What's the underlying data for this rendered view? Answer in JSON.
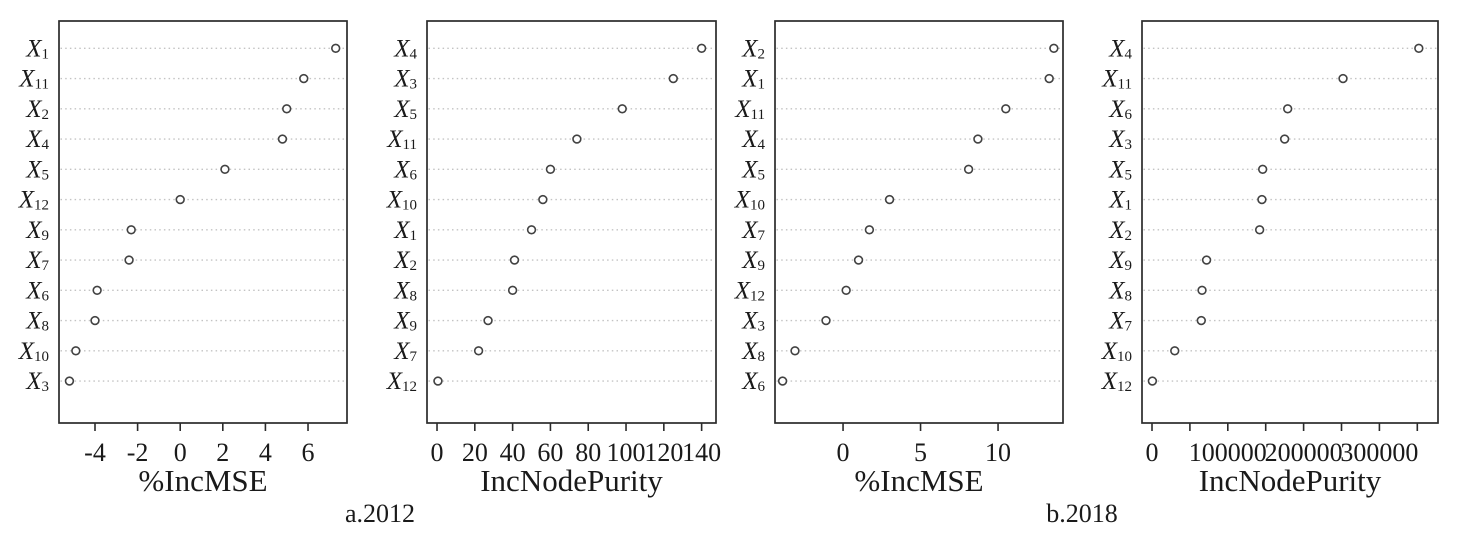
{
  "figure": {
    "description": "Random forest variable importance dot plots",
    "captions": [
      {
        "label": "a.2012"
      },
      {
        "label": "b.2018"
      }
    ]
  },
  "style": {
    "point_stroke": "#424242",
    "point_fill": "#ffffff",
    "grid_color": "#c3c3c3",
    "border_color": "#2b2b2b",
    "text_color": "#1a1a1a"
  },
  "chart_data": [
    {
      "type": "scatter",
      "panel": "2012-pct-inc-mse",
      "xlabel": "%IncMSE",
      "categories": [
        "X1",
        "X11",
        "X2",
        "X4",
        "X5",
        "X12",
        "X9",
        "X7",
        "X6",
        "X8",
        "X10",
        "X3"
      ],
      "values": [
        7.3,
        5.8,
        5.0,
        4.8,
        2.1,
        0.0,
        -2.3,
        -2.4,
        -3.9,
        -4.0,
        -4.9,
        -5.2
      ],
      "xlim": [
        -5.69,
        7.83
      ],
      "xticks": [
        {
          "value": -4,
          "label": "-4"
        },
        {
          "value": -2,
          "label": "-2"
        },
        {
          "value": 0,
          "label": "0"
        },
        {
          "value": 2,
          "label": "2"
        },
        {
          "value": 4,
          "label": "4"
        },
        {
          "value": 6,
          "label": "6"
        }
      ],
      "grid": "horizontal-dotted",
      "marker": "open-circle",
      "legend": "none"
    },
    {
      "type": "scatter",
      "panel": "2012-inc-node-purity",
      "xlabel": "IncNodePurity",
      "categories": [
        "X4",
        "X3",
        "X5",
        "X11",
        "X6",
        "X10",
        "X1",
        "X2",
        "X8",
        "X9",
        "X7",
        "X12"
      ],
      "values": [
        140,
        125,
        98,
        74,
        60,
        56,
        50,
        41,
        40,
        27,
        22,
        0.5
      ],
      "xlim": [
        -5.3,
        147.6
      ],
      "xticks": [
        {
          "value": 0,
          "label": "0"
        },
        {
          "value": 20,
          "label": "20"
        },
        {
          "value": 40,
          "label": "40"
        },
        {
          "value": 60,
          "label": "60"
        },
        {
          "value": 80,
          "label": "80"
        },
        {
          "value": 100,
          "label": "100"
        },
        {
          "value": 120,
          "label": "120"
        },
        {
          "value": 140,
          "label": "140"
        }
      ],
      "grid": "horizontal-dotted",
      "marker": "open-circle",
      "legend": "none"
    },
    {
      "type": "scatter",
      "panel": "2018-pct-inc-mse",
      "xlabel": "%IncMSE",
      "categories": [
        "X2",
        "X1",
        "X11",
        "X4",
        "X5",
        "X10",
        "X7",
        "X9",
        "X12",
        "X3",
        "X8",
        "X6"
      ],
      "values": [
        13.6,
        13.3,
        10.5,
        8.7,
        8.1,
        3.0,
        1.7,
        1.0,
        0.2,
        -1.1,
        -3.1,
        -3.9
      ],
      "xlim": [
        -4.39,
        14.19
      ],
      "xticks": [
        {
          "value": 0,
          "label": "0"
        },
        {
          "value": 5,
          "label": "5"
        },
        {
          "value": 10,
          "label": "10"
        }
      ],
      "grid": "horizontal-dotted",
      "marker": "open-circle",
      "legend": "none"
    },
    {
      "type": "scatter",
      "panel": "2018-inc-node-purity",
      "xlabel": "IncNodePurity",
      "categories": [
        "X4",
        "X11",
        "X6",
        "X3",
        "X5",
        "X1",
        "X2",
        "X9",
        "X8",
        "X7",
        "X10",
        "X12"
      ],
      "values": [
        352000,
        252000,
        179000,
        175000,
        146000,
        145000,
        142000,
        72000,
        66000,
        65000,
        30000,
        500
      ],
      "xlim": [
        -13200,
        377300
      ],
      "xticks": [
        {
          "value": 0,
          "label": "0"
        },
        {
          "value": 50000,
          "label": ""
        },
        {
          "value": 100000,
          "label": "100000"
        },
        {
          "value": 150000,
          "label": ""
        },
        {
          "value": 200000,
          "label": "200000"
        },
        {
          "value": 250000,
          "label": ""
        },
        {
          "value": 300000,
          "label": "300000"
        },
        {
          "value": 350000,
          "label": ""
        }
      ],
      "grid": "horizontal-dotted",
      "marker": "open-circle",
      "legend": "none"
    }
  ]
}
